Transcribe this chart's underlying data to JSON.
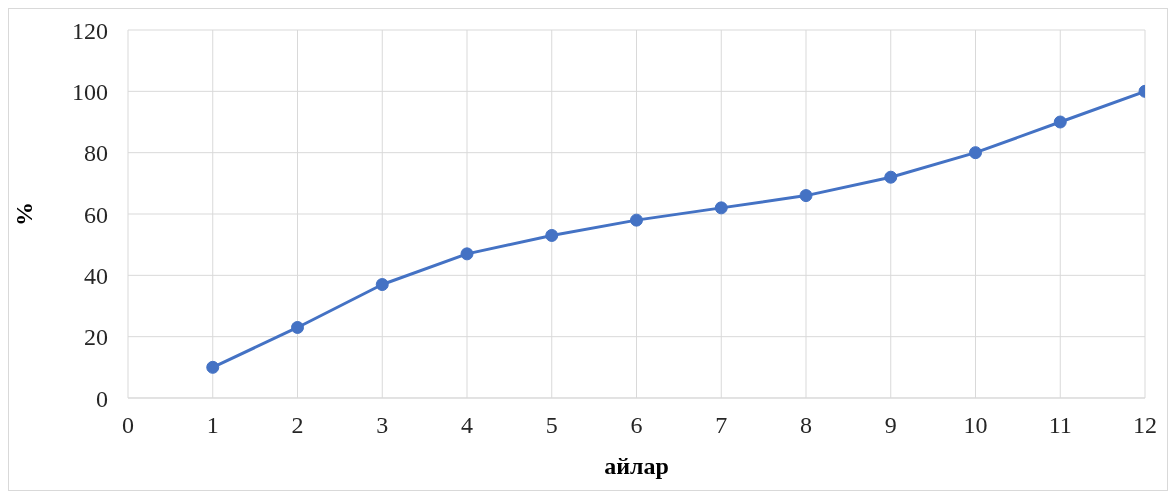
{
  "chart_data": {
    "type": "line",
    "xlabel": "айлар",
    "ylabel": "%",
    "x": [
      1,
      2,
      3,
      4,
      5,
      6,
      7,
      8,
      9,
      10,
      11,
      12
    ],
    "series": [
      {
        "color": "#4472c4",
        "values": [
          10,
          23,
          37,
          47,
          53,
          58,
          62,
          66,
          72,
          80,
          90,
          100
        ]
      }
    ],
    "xlim": [
      0,
      12
    ],
    "xticks": [
      0,
      1,
      2,
      3,
      4,
      5,
      6,
      7,
      8,
      9,
      10,
      11,
      12
    ],
    "ylim": [
      0,
      120
    ],
    "yticks": [
      0,
      20,
      40,
      60,
      80,
      100,
      120
    ],
    "grid": true,
    "marker": "circle",
    "line_style": "solid"
  }
}
